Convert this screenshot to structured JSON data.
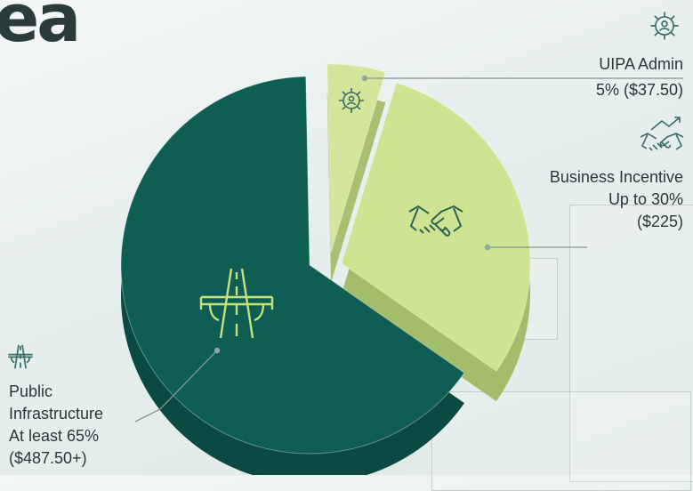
{
  "heading_fragment": "ea",
  "chart_data": {
    "type": "pie",
    "title": "",
    "slices": [
      {
        "key": "admin",
        "value": 5,
        "color": "#d4e69c",
        "side": "#a9c072",
        "icon": "gear-person-icon"
      },
      {
        "key": "business",
        "value": 30,
        "color": "#cde591",
        "side": "#a4bd6a",
        "icon": "handshake-icon"
      },
      {
        "key": "infra",
        "value": 65,
        "color": "#0f5e54",
        "side": "#0a4a42",
        "icon": "highway-icon"
      }
    ]
  },
  "callouts": {
    "admin": {
      "title": "UIPA Admin",
      "detail": "5% ($37.50)",
      "icon": "gear-person-icon"
    },
    "business": {
      "title": "Business Incentive",
      "detail1": "Up to 30%",
      "detail2": "($225)",
      "icon": "handshake-chart-icon"
    },
    "infra": {
      "title1": "Public",
      "title2": "Infrastructure",
      "detail1": "At least 65%",
      "detail2": "($487.50+)",
      "icon": "highway-icon"
    }
  },
  "colors": {
    "icon_line": "#3a6e66",
    "leader": "#7f9894"
  }
}
